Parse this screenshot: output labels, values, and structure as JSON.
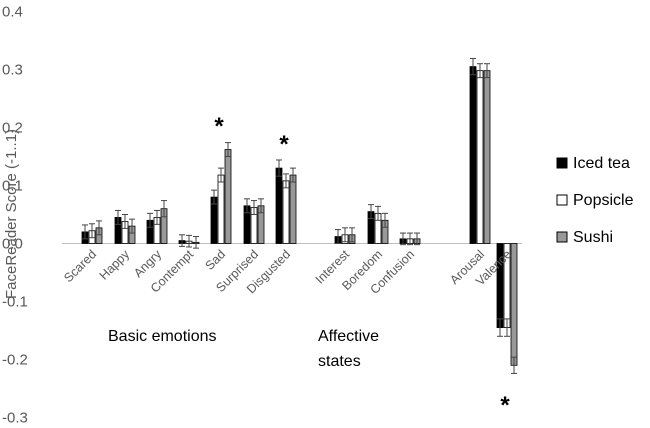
{
  "chart_data": {
    "type": "bar",
    "ylabel": "FaceReader Score (-1..1)",
    "ylim": [
      -0.3,
      0.4
    ],
    "yticks": [
      "0.4",
      "0.3",
      "0.2",
      "0.1",
      "0.0",
      "-0.1",
      "-0.2",
      "-0.3"
    ],
    "categories": [
      "Scared",
      "Happy",
      "Angry",
      "Contempt",
      "Sad",
      "Surprised",
      "Disgusted",
      "Interest",
      "Boredom",
      "Confusion",
      "Arousal",
      "Valence"
    ],
    "series": [
      {
        "name": "Iced tea",
        "color": "#000000",
        "values": [
          0.02,
          0.045,
          0.04,
          0.005,
          0.08,
          0.065,
          0.13,
          0.012,
          0.055,
          0.008,
          0.305,
          -0.145
        ],
        "errors": [
          0.012,
          0.012,
          0.012,
          0.01,
          0.012,
          0.012,
          0.014,
          0.012,
          0.012,
          0.01,
          0.014,
          0.015
        ]
      },
      {
        "name": "Popsicle",
        "color": "#ffffff",
        "values": [
          0.022,
          0.038,
          0.045,
          0.004,
          0.118,
          0.062,
          0.108,
          0.015,
          0.052,
          0.008,
          0.298,
          -0.145
        ],
        "errors": [
          0.012,
          0.012,
          0.012,
          0.01,
          0.012,
          0.012,
          0.012,
          0.012,
          0.012,
          0.01,
          0.012,
          0.015
        ]
      },
      {
        "name": "Sushi",
        "color": "#999999",
        "values": [
          0.027,
          0.03,
          0.06,
          0.002,
          0.162,
          0.065,
          0.118,
          0.015,
          0.04,
          0.008,
          0.298,
          -0.21
        ],
        "errors": [
          0.012,
          0.012,
          0.014,
          0.01,
          0.012,
          0.012,
          0.012,
          0.012,
          0.012,
          0.01,
          0.012,
          0.014
        ]
      }
    ],
    "groups": [
      {
        "label": "Basic emotions"
      },
      {
        "label": "Affective"
      },
      {
        "label": "states"
      }
    ],
    "significance": [
      {
        "category": "Sad",
        "label": "*"
      },
      {
        "category": "Disgusted",
        "label": "*"
      },
      {
        "category": "Valence",
        "label": "*"
      }
    ],
    "legend_position": "right",
    "grid": false
  }
}
